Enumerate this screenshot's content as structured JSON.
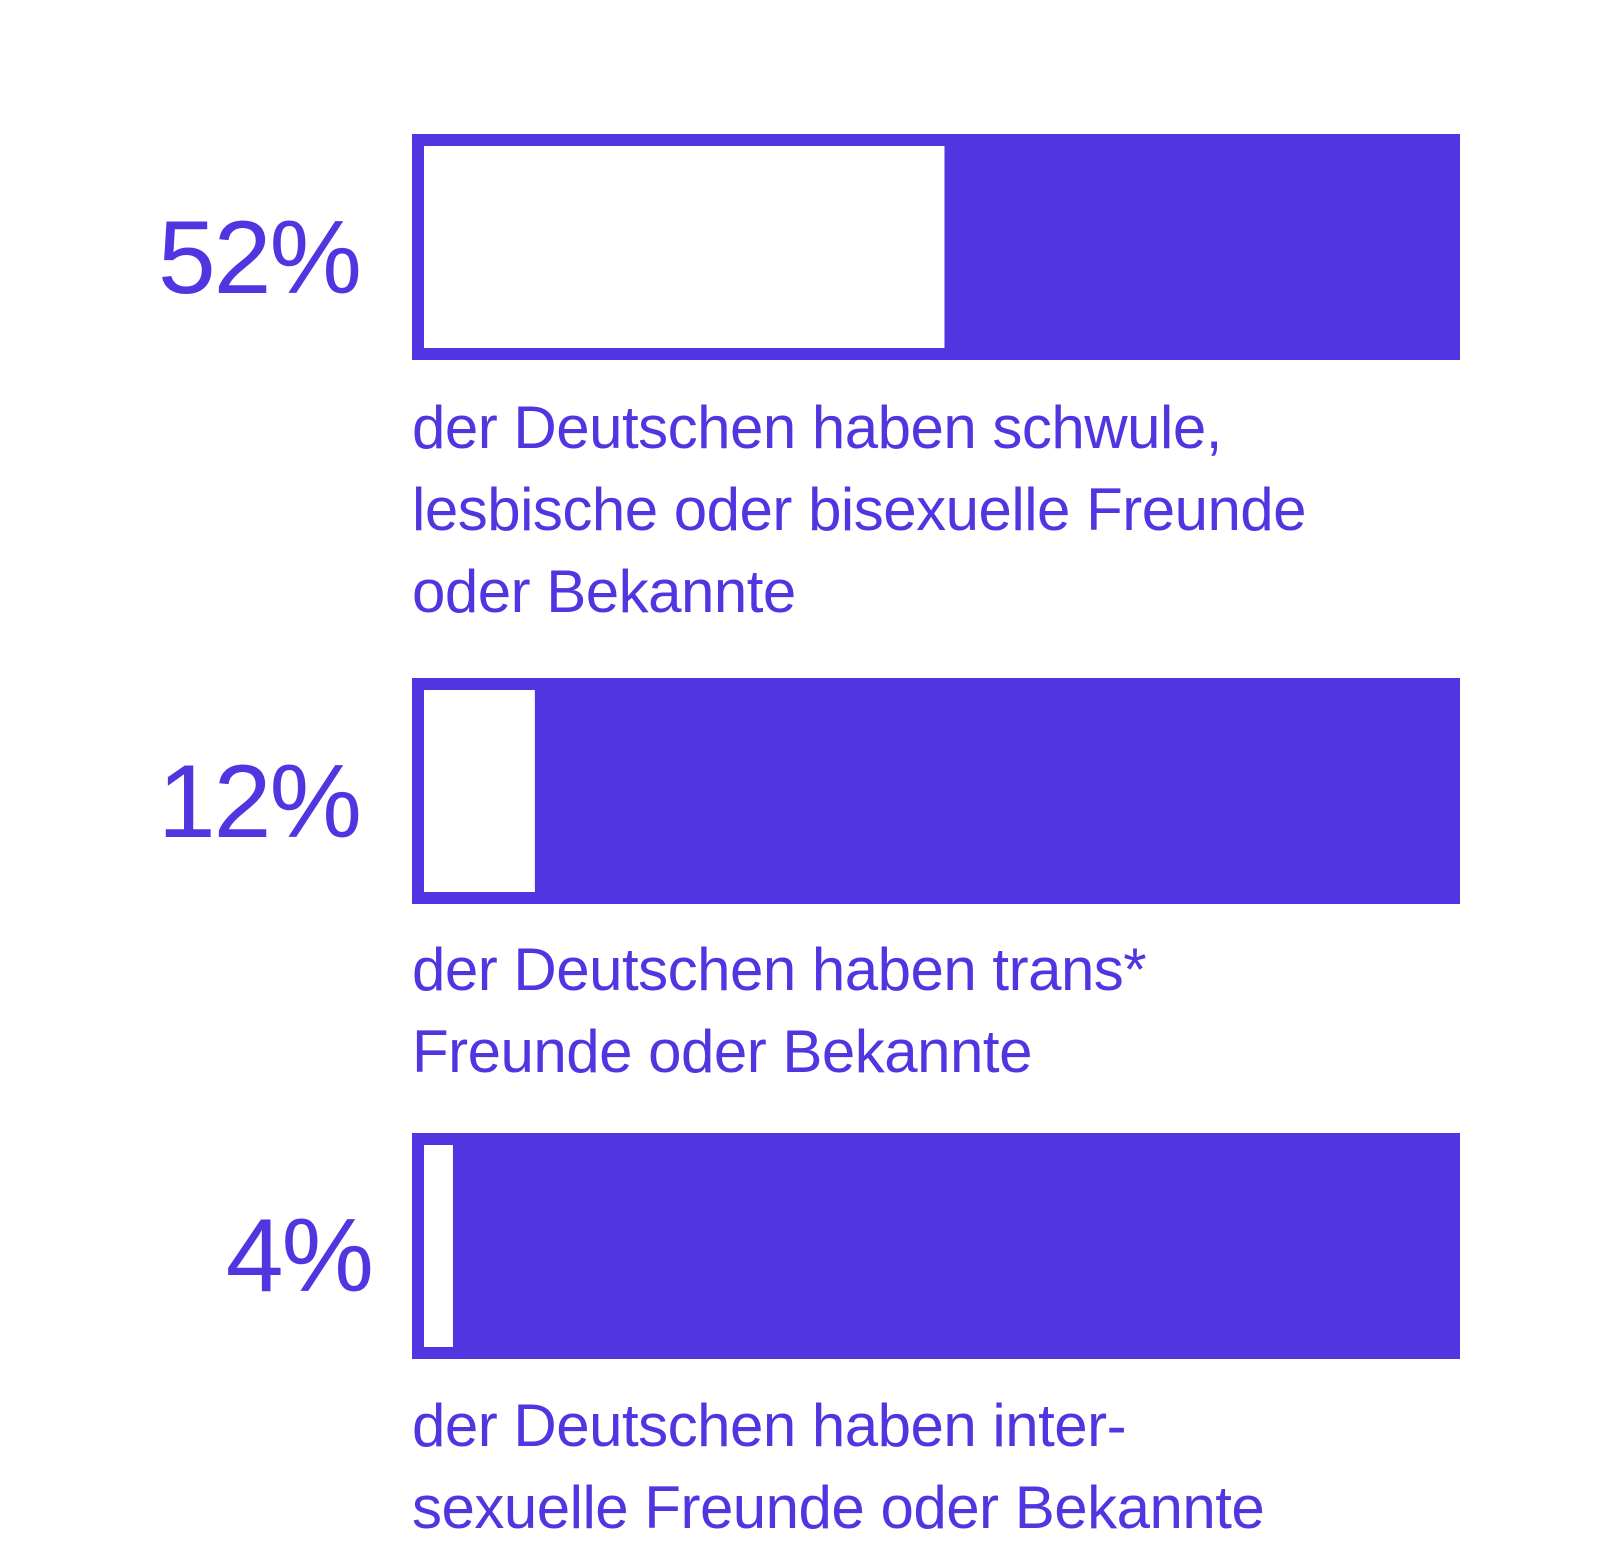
{
  "colors": {
    "accent": "#5035e0",
    "background": "#ffffff"
  },
  "chart_data": {
    "type": "bar",
    "orientation": "horizontal",
    "ylim": [
      0,
      100
    ],
    "unit": "%",
    "rows": [
      {
        "value": 52,
        "label": "52%",
        "description_lines": [
          "der Deutschen haben schwule,",
          "lesbische oder bisexuelle Freunde",
          "oder Bekannte"
        ]
      },
      {
        "value": 12,
        "label": "12%",
        "description_lines": [
          "der Deutschen haben trans*",
          "Freunde oder Bekannte"
        ]
      },
      {
        "value": 4,
        "label": "4%",
        "description_lines": [
          "der Deutschen haben inter-",
          "sexuelle Freunde oder Bekannte"
        ]
      }
    ]
  }
}
